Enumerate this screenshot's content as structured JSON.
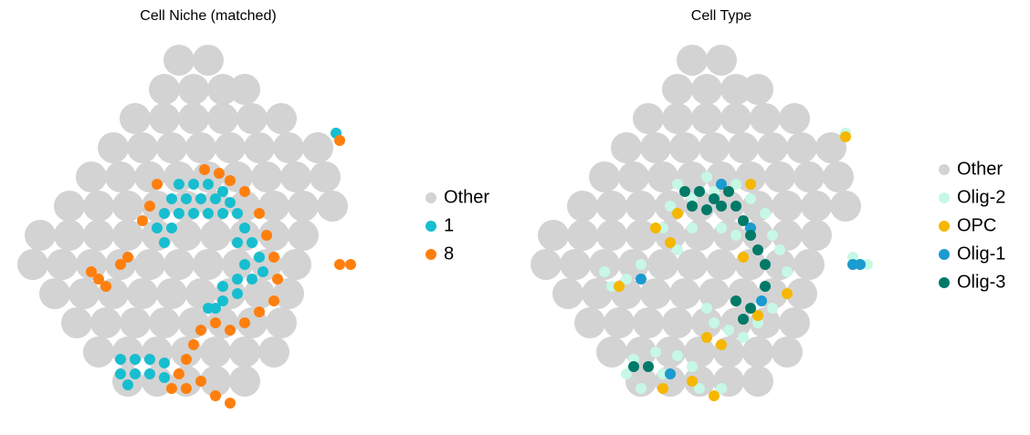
{
  "chart_data": [
    {
      "type": "scatter",
      "title": "Cell Niche (matched)",
      "xlim": [
        0,
        100
      ],
      "ylim": [
        0,
        100
      ],
      "legend": "right",
      "series": [
        {
          "name": "Other",
          "color": "#d3d3d3",
          "x": [
            44,
            52,
            40,
            48,
            56,
            62,
            32,
            40,
            48,
            56,
            64,
            72,
            26,
            34,
            42,
            50,
            58,
            66,
            74,
            82,
            20,
            28,
            36,
            44,
            52,
            60,
            68,
            76,
            84,
            14,
            22,
            30,
            38,
            46,
            54,
            62,
            70,
            78,
            86,
            6,
            14,
            22,
            30,
            38,
            46,
            54,
            62,
            70,
            78,
            4,
            12,
            20,
            28,
            36,
            44,
            52,
            60,
            68,
            76,
            10,
            18,
            26,
            34,
            42,
            50,
            58,
            66,
            74,
            16,
            24,
            32,
            40,
            48,
            56,
            64,
            72,
            22,
            30,
            38,
            46,
            54,
            62,
            70,
            30,
            38,
            46,
            54,
            62
          ],
          "y": [
            96,
            96,
            88,
            88,
            88,
            88,
            80,
            80,
            80,
            80,
            80,
            80,
            72,
            72,
            72,
            72,
            72,
            72,
            72,
            72,
            64,
            64,
            64,
            64,
            64,
            64,
            64,
            64,
            64,
            56,
            56,
            56,
            56,
            56,
            56,
            56,
            56,
            56,
            56,
            48,
            48,
            48,
            48,
            48,
            48,
            48,
            48,
            48,
            48,
            40,
            40,
            40,
            40,
            40,
            40,
            40,
            40,
            40,
            40,
            32,
            32,
            32,
            32,
            32,
            32,
            32,
            32,
            32,
            24,
            24,
            24,
            24,
            24,
            24,
            24,
            24,
            16,
            16,
            16,
            16,
            16,
            16,
            16,
            8,
            8,
            8,
            8,
            8
          ]
        },
        {
          "name": "1",
          "color": "#17becf",
          "x": [
            44,
            48,
            52,
            56,
            42,
            46,
            50,
            54,
            58,
            60,
            62,
            64,
            66,
            67,
            40,
            44,
            48,
            52,
            56,
            38,
            42,
            60,
            40,
            62,
            64,
            60,
            56,
            52,
            56,
            60,
            54,
            28,
            32,
            36,
            40,
            28,
            32,
            36,
            40,
            30,
            87
          ],
          "y": [
            62,
            62,
            62,
            60,
            58,
            58,
            58,
            58,
            57,
            54,
            50,
            46,
            42,
            38,
            54,
            54,
            54,
            54,
            54,
            50,
            50,
            46,
            46,
            40,
            36,
            32,
            30,
            28,
            34,
            36,
            28,
            14,
            14,
            14,
            13,
            10,
            10,
            10,
            9,
            7,
            76
          ]
        },
        {
          "name": "8",
          "color": "#ff7f0e",
          "x": [
            51,
            55,
            58,
            62,
            38,
            36,
            34,
            66,
            68,
            70,
            71,
            70,
            66,
            62,
            58,
            54,
            50,
            48,
            46,
            44,
            42,
            46,
            50,
            54,
            58,
            20,
            22,
            24,
            28,
            30,
            88,
            91,
            88
          ],
          "y": [
            66,
            65,
            63,
            60,
            62,
            56,
            52,
            54,
            48,
            42,
            36,
            30,
            27,
            24,
            22,
            24,
            22,
            18,
            14,
            10,
            6,
            6,
            8,
            4,
            2,
            38,
            36,
            34,
            40,
            42,
            40,
            40,
            74
          ]
        }
      ]
    },
    {
      "type": "scatter",
      "title": "Cell Type",
      "xlim": [
        0,
        100
      ],
      "ylim": [
        0,
        100
      ],
      "legend": "right",
      "series": [
        {
          "name": "Other",
          "color": "#d3d3d3",
          "x": [
            44,
            52,
            40,
            48,
            56,
            62,
            32,
            40,
            48,
            56,
            64,
            72,
            26,
            34,
            42,
            50,
            58,
            66,
            74,
            82,
            20,
            28,
            36,
            44,
            52,
            60,
            68,
            76,
            84,
            14,
            22,
            30,
            38,
            46,
            54,
            62,
            70,
            78,
            86,
            6,
            14,
            22,
            30,
            38,
            46,
            54,
            62,
            70,
            78,
            4,
            12,
            20,
            28,
            36,
            44,
            52,
            60,
            68,
            76,
            10,
            18,
            26,
            34,
            42,
            50,
            58,
            66,
            74,
            16,
            24,
            32,
            40,
            48,
            56,
            64,
            72,
            22,
            30,
            38,
            46,
            54,
            62,
            70,
            30,
            38,
            46,
            54,
            62
          ],
          "y": [
            96,
            96,
            88,
            88,
            88,
            88,
            80,
            80,
            80,
            80,
            80,
            80,
            72,
            72,
            72,
            72,
            72,
            72,
            72,
            72,
            64,
            64,
            64,
            64,
            64,
            64,
            64,
            64,
            64,
            56,
            56,
            56,
            56,
            56,
            56,
            56,
            56,
            56,
            56,
            48,
            48,
            48,
            48,
            48,
            48,
            48,
            48,
            48,
            48,
            40,
            40,
            40,
            40,
            40,
            40,
            40,
            40,
            40,
            40,
            32,
            32,
            32,
            32,
            32,
            32,
            32,
            32,
            32,
            24,
            24,
            24,
            24,
            24,
            24,
            24,
            24,
            16,
            16,
            16,
            16,
            16,
            16,
            16,
            8,
            8,
            8,
            8,
            8
          ]
        },
        {
          "name": "Olig-2",
          "color": "#c6f8e5",
          "x": [
            40,
            48,
            56,
            60,
            64,
            66,
            68,
            70,
            70,
            66,
            62,
            58,
            54,
            50,
            48,
            38,
            36,
            40,
            44,
            52,
            56,
            44,
            50,
            30,
            26,
            20,
            22,
            28,
            34,
            40,
            44,
            46,
            52,
            30,
            26,
            36,
            88,
            92,
            86
          ],
          "y": [
            62,
            64,
            62,
            58,
            54,
            48,
            44,
            38,
            32,
            28,
            24,
            20,
            22,
            24,
            28,
            56,
            50,
            44,
            50,
            50,
            48,
            58,
            60,
            40,
            36,
            38,
            34,
            14,
            16,
            15,
            12,
            6,
            6,
            6,
            10,
            10,
            42,
            40,
            76
          ]
        },
        {
          "name": "OPC",
          "color": "#f5b700",
          "x": [
            38,
            34,
            40,
            48,
            52,
            44,
            36,
            50,
            24,
            70,
            62,
            60,
            58,
            86
          ],
          "y": [
            46,
            50,
            54,
            20,
            18,
            8,
            6,
            4,
            34,
            32,
            26,
            62,
            42,
            75
          ]
        },
        {
          "name": "Olig-1",
          "color": "#1b9bd0",
          "x": [
            52,
            60,
            30,
            63,
            38,
            88,
            90
          ],
          "y": [
            62,
            50,
            36,
            30,
            10,
            40,
            40
          ]
        },
        {
          "name": "Olig-3",
          "color": "#007a68",
          "x": [
            42,
            46,
            50,
            54,
            44,
            48,
            52,
            56,
            58,
            60,
            62,
            64,
            64,
            28,
            32,
            58,
            60,
            56
          ],
          "y": [
            60,
            60,
            58,
            60,
            56,
            55,
            56,
            56,
            52,
            48,
            44,
            40,
            34,
            12,
            12,
            25,
            28,
            30
          ]
        }
      ]
    }
  ]
}
